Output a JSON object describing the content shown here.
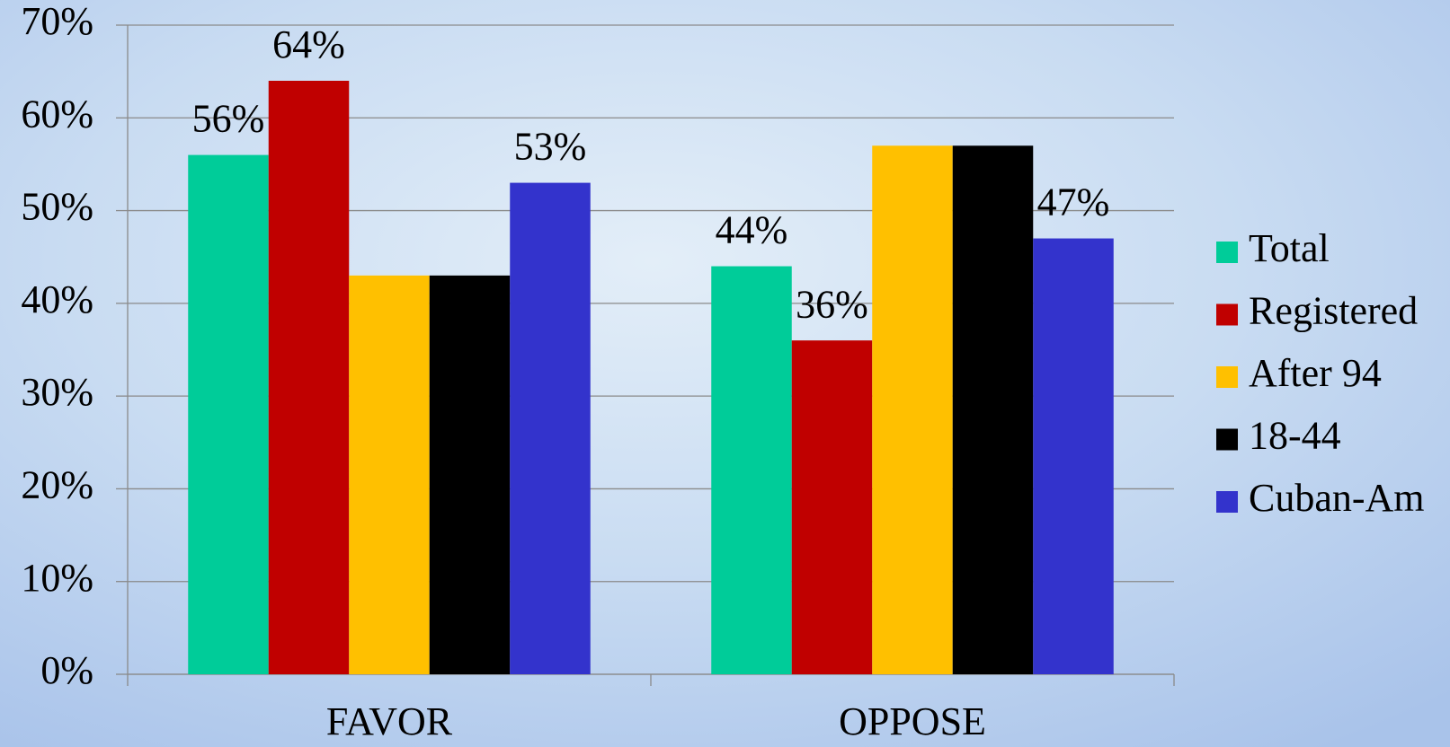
{
  "chart_data": {
    "type": "bar",
    "categories": [
      "FAVOR",
      "OPPOSE"
    ],
    "series": [
      {
        "name": "Total",
        "color": "#00cc99",
        "values": [
          56,
          44
        ],
        "value_labels": [
          "56%",
          "44%"
        ]
      },
      {
        "name": "Registered",
        "color": "#c00000",
        "values": [
          64,
          36
        ],
        "value_labels": [
          "64%",
          "36%"
        ]
      },
      {
        "name": "After 94",
        "color": "#ffc000",
        "values": [
          43,
          57
        ]
      },
      {
        "name": "18-44",
        "color": "#000000",
        "values": [
          43,
          57
        ]
      },
      {
        "name": "Cuban-Am",
        "color": "#3333cc",
        "values": [
          53,
          47
        ],
        "value_labels": [
          "53%",
          "47%"
        ]
      }
    ],
    "ylim": [
      0,
      70
    ],
    "yticks": [
      {
        "value": 0,
        "label": "0%"
      },
      {
        "value": 10,
        "label": "10%"
      },
      {
        "value": 20,
        "label": "20%"
      },
      {
        "value": 30,
        "label": "30%"
      },
      {
        "value": 40,
        "label": "40%"
      },
      {
        "value": 50,
        "label": "50%"
      },
      {
        "value": 60,
        "label": "60%"
      },
      {
        "value": 70,
        "label": "70%"
      }
    ],
    "grid": true,
    "legend": "right"
  }
}
